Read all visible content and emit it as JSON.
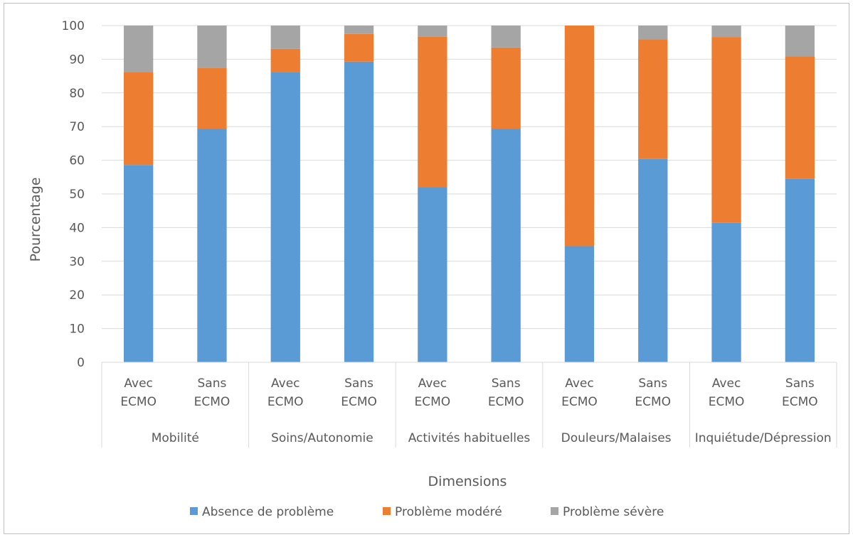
{
  "chart_data": {
    "type": "bar",
    "stacked": true,
    "title": "",
    "xlabel": "Dimensions",
    "ylabel": "Pourcentage",
    "ylim": [
      0,
      100
    ],
    "yticks": [
      0,
      10,
      20,
      30,
      40,
      50,
      60,
      70,
      80,
      90,
      100
    ],
    "grid": true,
    "legend_position": "bottom",
    "groups": [
      "Mobilité",
      "Soins/Autonomie",
      "Activités habituelles",
      "Douleurs/Malaises",
      "Inquiétude/Dépression"
    ],
    "subcategories": [
      [
        "Avec",
        "ECMO"
      ],
      [
        "Sans",
        "ECMO"
      ]
    ],
    "categories": [
      "Mobilité - Avec ECMO",
      "Mobilité - Sans ECMO",
      "Soins/Autonomie - Avec ECMO",
      "Soins/Autonomie - Sans ECMO",
      "Activités habituelles - Avec ECMO",
      "Activités habituelles - Sans ECMO",
      "Douleurs/Malaises - Avec ECMO",
      "Douleurs/Malaises - Sans ECMO",
      "Inquiétude/Dépression - Avec ECMO",
      "Inquiétude/Dépression - Sans ECMO"
    ],
    "series": [
      {
        "name": "Absence de problème",
        "color": "#5b9bd5",
        "values": [
          58.6,
          69.4,
          86.2,
          89.3,
          51.9,
          69.4,
          34.5,
          60.4,
          41.4,
          54.5
        ]
      },
      {
        "name": "Problème modéré",
        "color": "#ed7d31",
        "values": [
          27.6,
          18.1,
          6.9,
          8.2,
          44.8,
          24.1,
          65.5,
          35.5,
          55.2,
          36.4
        ]
      },
      {
        "name": "Problème sévère",
        "color": "#a5a5a5",
        "values": [
          13.8,
          12.5,
          6.9,
          2.5,
          3.3,
          6.5,
          0,
          4.1,
          3.4,
          9.1
        ]
      }
    ]
  }
}
